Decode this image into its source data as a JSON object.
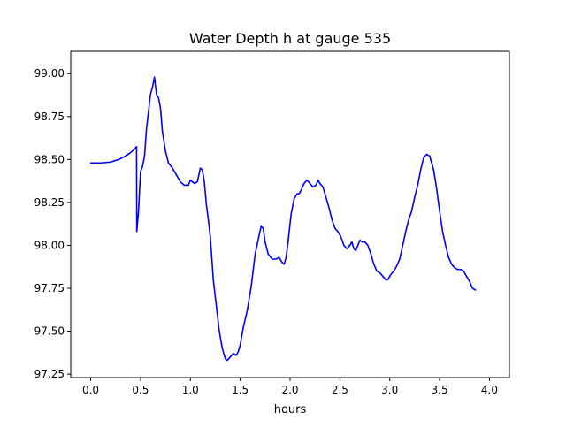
{
  "chart_data": {
    "type": "line",
    "title": "Water Depth h at gauge 535",
    "xlabel": "hours",
    "ylabel": "",
    "xlim": [
      -0.2,
      4.2
    ],
    "ylim": [
      97.23,
      99.13
    ],
    "grid": false,
    "xticks": [
      0.0,
      0.5,
      1.0,
      1.5,
      2.0,
      2.5,
      3.0,
      3.5,
      4.0
    ],
    "xtick_labels": [
      "0.0",
      "0.5",
      "1.0",
      "1.5",
      "2.0",
      "2.5",
      "3.0",
      "3.5",
      "4.0"
    ],
    "yticks": [
      97.25,
      97.5,
      97.75,
      98.0,
      98.25,
      98.5,
      98.75,
      99.0
    ],
    "ytick_labels": [
      "97.25",
      "97.50",
      "97.75",
      "98.00",
      "98.25",
      "98.50",
      "98.75",
      "99.00"
    ],
    "series": [
      {
        "color": "#0000ff",
        "points": [
          [
            0.0,
            98.48
          ],
          [
            0.1,
            98.48
          ],
          [
            0.2,
            98.485
          ],
          [
            0.28,
            98.5
          ],
          [
            0.35,
            98.52
          ],
          [
            0.4,
            98.54
          ],
          [
            0.44,
            98.56
          ],
          [
            0.46,
            98.575
          ],
          [
            0.462,
            98.08
          ],
          [
            0.48,
            98.2
          ],
          [
            0.5,
            98.43
          ],
          [
            0.52,
            98.46
          ],
          [
            0.54,
            98.52
          ],
          [
            0.56,
            98.68
          ],
          [
            0.58,
            98.78
          ],
          [
            0.6,
            98.88
          ],
          [
            0.62,
            98.92
          ],
          [
            0.64,
            98.98
          ],
          [
            0.66,
            98.88
          ],
          [
            0.68,
            98.86
          ],
          [
            0.7,
            98.8
          ],
          [
            0.72,
            98.66
          ],
          [
            0.75,
            98.55
          ],
          [
            0.78,
            98.48
          ],
          [
            0.82,
            98.45
          ],
          [
            0.86,
            98.41
          ],
          [
            0.9,
            98.37
          ],
          [
            0.94,
            98.35
          ],
          [
            0.98,
            98.35
          ],
          [
            1.0,
            98.38
          ],
          [
            1.04,
            98.36
          ],
          [
            1.07,
            98.37
          ],
          [
            1.1,
            98.45
          ],
          [
            1.12,
            98.44
          ],
          [
            1.14,
            98.37
          ],
          [
            1.16,
            98.24
          ],
          [
            1.18,
            98.15
          ],
          [
            1.2,
            98.05
          ],
          [
            1.23,
            97.8
          ],
          [
            1.26,
            97.65
          ],
          [
            1.29,
            97.5
          ],
          [
            1.32,
            97.4
          ],
          [
            1.35,
            97.34
          ],
          [
            1.37,
            97.33
          ],
          [
            1.4,
            97.35
          ],
          [
            1.43,
            97.37
          ],
          [
            1.46,
            97.36
          ],
          [
            1.48,
            97.38
          ],
          [
            1.5,
            97.42
          ],
          [
            1.53,
            97.52
          ],
          [
            1.57,
            97.62
          ],
          [
            1.61,
            97.76
          ],
          [
            1.65,
            97.95
          ],
          [
            1.69,
            98.06
          ],
          [
            1.71,
            98.11
          ],
          [
            1.73,
            98.1
          ],
          [
            1.75,
            98.02
          ],
          [
            1.78,
            97.95
          ],
          [
            1.82,
            97.92
          ],
          [
            1.86,
            97.92
          ],
          [
            1.89,
            97.93
          ],
          [
            1.92,
            97.9
          ],
          [
            1.94,
            97.89
          ],
          [
            1.96,
            97.93
          ],
          [
            1.98,
            98.02
          ],
          [
            2.01,
            98.18
          ],
          [
            2.04,
            98.27
          ],
          [
            2.07,
            98.3
          ],
          [
            2.09,
            98.3
          ],
          [
            2.11,
            98.32
          ],
          [
            2.14,
            98.36
          ],
          [
            2.17,
            98.38
          ],
          [
            2.2,
            98.36
          ],
          [
            2.23,
            98.34
          ],
          [
            2.26,
            98.35
          ],
          [
            2.28,
            98.38
          ],
          [
            2.3,
            98.36
          ],
          [
            2.33,
            98.34
          ],
          [
            2.36,
            98.28
          ],
          [
            2.39,
            98.22
          ],
          [
            2.42,
            98.15
          ],
          [
            2.45,
            98.1
          ],
          [
            2.48,
            98.08
          ],
          [
            2.51,
            98.05
          ],
          [
            2.54,
            98.0
          ],
          [
            2.57,
            97.98
          ],
          [
            2.6,
            98.0
          ],
          [
            2.62,
            98.02
          ],
          [
            2.64,
            97.98
          ],
          [
            2.66,
            97.97
          ],
          [
            2.68,
            98.0
          ],
          [
            2.7,
            98.03
          ],
          [
            2.72,
            98.02
          ],
          [
            2.75,
            98.02
          ],
          [
            2.78,
            98.0
          ],
          [
            2.81,
            97.95
          ],
          [
            2.84,
            97.89
          ],
          [
            2.87,
            97.85
          ],
          [
            2.9,
            97.84
          ],
          [
            2.93,
            97.82
          ],
          [
            2.96,
            97.8
          ],
          [
            2.98,
            97.8
          ],
          [
            3.01,
            97.83
          ],
          [
            3.04,
            97.85
          ],
          [
            3.07,
            97.88
          ],
          [
            3.1,
            97.92
          ],
          [
            3.13,
            98.0
          ],
          [
            3.16,
            98.08
          ],
          [
            3.19,
            98.15
          ],
          [
            3.22,
            98.2
          ],
          [
            3.25,
            98.28
          ],
          [
            3.28,
            98.35
          ],
          [
            3.31,
            98.44
          ],
          [
            3.34,
            98.51
          ],
          [
            3.37,
            98.53
          ],
          [
            3.4,
            98.52
          ],
          [
            3.42,
            98.48
          ],
          [
            3.44,
            98.44
          ],
          [
            3.47,
            98.33
          ],
          [
            3.5,
            98.2
          ],
          [
            3.53,
            98.08
          ],
          [
            3.56,
            98.0
          ],
          [
            3.59,
            97.93
          ],
          [
            3.62,
            97.89
          ],
          [
            3.65,
            97.87
          ],
          [
            3.68,
            97.86
          ],
          [
            3.71,
            97.86
          ],
          [
            3.74,
            97.85
          ],
          [
            3.77,
            97.82
          ],
          [
            3.8,
            97.79
          ],
          [
            3.83,
            97.75
          ],
          [
            3.86,
            97.74
          ]
        ]
      }
    ]
  }
}
